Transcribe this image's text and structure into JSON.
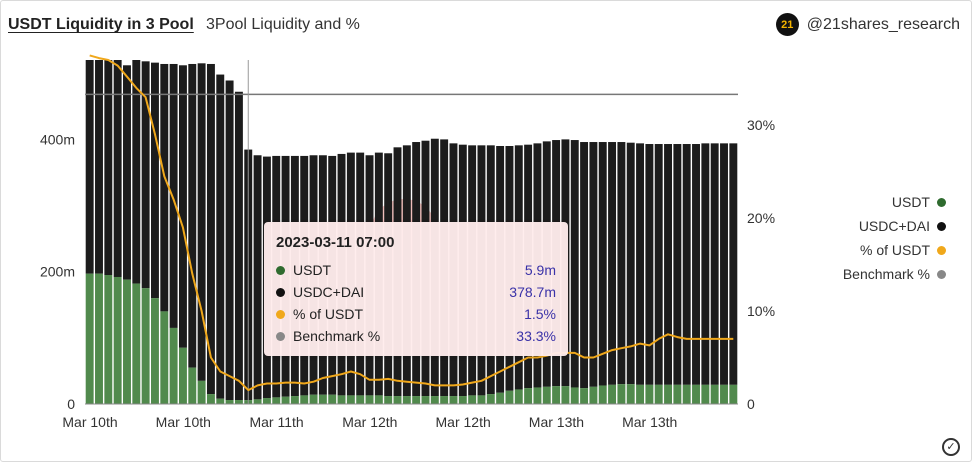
{
  "header": {
    "title": "USDT Liquidity in 3 Pool",
    "subtitle": "3Pool Liquidity and %",
    "brand_logo_text": "21",
    "brand_handle": "@21shares_research"
  },
  "colors": {
    "usdt": "#2f6b2f",
    "usdt_bar": "#3e7d3a",
    "usdc_dai_bar": "#1c1c1c",
    "pct_line": "#f0a81b",
    "benchmark": "#777777"
  },
  "legend": {
    "items": [
      {
        "label": "USDT",
        "color": "#2f6b2f"
      },
      {
        "label": "USDC+DAI",
        "color": "#111111"
      },
      {
        "label": "% of USDT",
        "color": "#f0a81b"
      },
      {
        "label": "Benchmark %",
        "color": "#888888"
      }
    ]
  },
  "tooltip": {
    "title": "2023-03-11 07:00",
    "rows": [
      {
        "label": "USDT",
        "value": "5.9m",
        "color": "#2f6b2f"
      },
      {
        "label": "USDC+DAI",
        "value": "378.7m",
        "color": "#111111"
      },
      {
        "label": "% of USDT",
        "value": "1.5%",
        "color": "#f0a81b"
      },
      {
        "label": "Benchmark %",
        "value": "33.3%",
        "color": "#888888"
      }
    ]
  },
  "chart_data": {
    "type": "bar",
    "title": "USDT Liquidity in 3 Pool",
    "subtitle": "3Pool Liquidity and %",
    "x_tick_labels": [
      "Mar 10th",
      "Mar 10th",
      "Mar 11th",
      "Mar 12th",
      "Mar 12th",
      "Mar 13th",
      "Mar 13th"
    ],
    "x_tick_positions": [
      0,
      10,
      20,
      30,
      40,
      50,
      60
    ],
    "y_left": {
      "ticks": [
        0,
        200,
        400
      ],
      "tick_labels": [
        "0",
        "200m",
        "400m"
      ],
      "range": [
        0,
        520
      ],
      "unit": "m"
    },
    "y_right": {
      "ticks": [
        0,
        10,
        20,
        30
      ],
      "tick_labels": [
        "0",
        "10%",
        "20%",
        "30%"
      ],
      "range": [
        0,
        37
      ]
    },
    "benchmark_pct": 33.3,
    "crosshair_index": 17,
    "series": [
      {
        "name": "USDT",
        "stack": "liquidity",
        "axis": "left",
        "values": [
          197,
          197,
          195,
          192,
          188,
          182,
          175,
          160,
          140,
          115,
          85,
          55,
          35,
          15,
          8,
          6,
          6,
          5.9,
          7,
          9,
          10,
          11,
          12,
          13,
          14,
          14,
          14,
          13,
          13,
          13,
          13,
          13,
          12,
          12,
          12,
          12,
          12,
          12,
          12,
          12,
          12,
          13,
          13,
          15,
          17,
          20,
          22,
          24,
          25,
          26,
          27,
          27,
          25,
          24,
          26,
          28,
          29,
          30,
          30,
          29,
          29,
          29,
          29,
          29,
          29,
          29,
          29,
          29,
          29,
          29
        ]
      },
      {
        "name": "USDC+DAI",
        "stack": "liquidity",
        "axis": "left",
        "values": [
          323,
          323,
          325,
          328,
          324,
          338,
          343,
          356,
          374,
          399,
          427,
          459,
          480,
          499,
          490,
          483,
          466,
          378.7,
          369,
          365,
          365,
          364,
          363,
          362,
          362,
          362,
          361,
          365,
          367,
          367,
          363,
          367,
          367,
          376,
          379,
          384,
          386,
          389,
          388,
          382,
          380,
          378,
          378,
          376,
          373,
          370,
          369,
          368,
          369,
          371,
          372,
          373,
          374,
          372,
          370,
          368,
          367,
          366,
          365,
          365,
          364,
          364,
          364,
          364,
          364,
          364,
          365,
          365,
          365,
          365
        ]
      },
      {
        "name": "% of USDT",
        "type": "line",
        "axis": "right",
        "values": [
          37.5,
          37.2,
          37.0,
          36.4,
          35.2,
          34.0,
          33.0,
          29.0,
          24.5,
          22.0,
          19.0,
          14.0,
          10.0,
          5.0,
          3.5,
          3.0,
          2.5,
          1.5,
          2.0,
          2.2,
          2.2,
          2.3,
          2.3,
          2.2,
          2.4,
          2.8,
          3.0,
          3.2,
          3.5,
          3.2,
          2.6,
          2.6,
          2.7,
          2.5,
          2.4,
          2.3,
          2.2,
          2.0,
          2.0,
          2.0,
          2.1,
          2.3,
          2.5,
          3.0,
          3.5,
          4.0,
          4.5,
          5.0,
          5.0,
          5.2,
          5.5,
          5.5,
          5.5,
          5.0,
          5.0,
          5.4,
          5.8,
          6.0,
          6.2,
          6.5,
          6.3,
          7.0,
          7.5,
          7.2,
          7.0,
          7.0,
          7.0,
          7.0,
          7.0,
          7.0
        ]
      },
      {
        "name": "Benchmark %",
        "type": "line",
        "axis": "right",
        "values": [
          33.3,
          33.3
        ]
      }
    ]
  }
}
